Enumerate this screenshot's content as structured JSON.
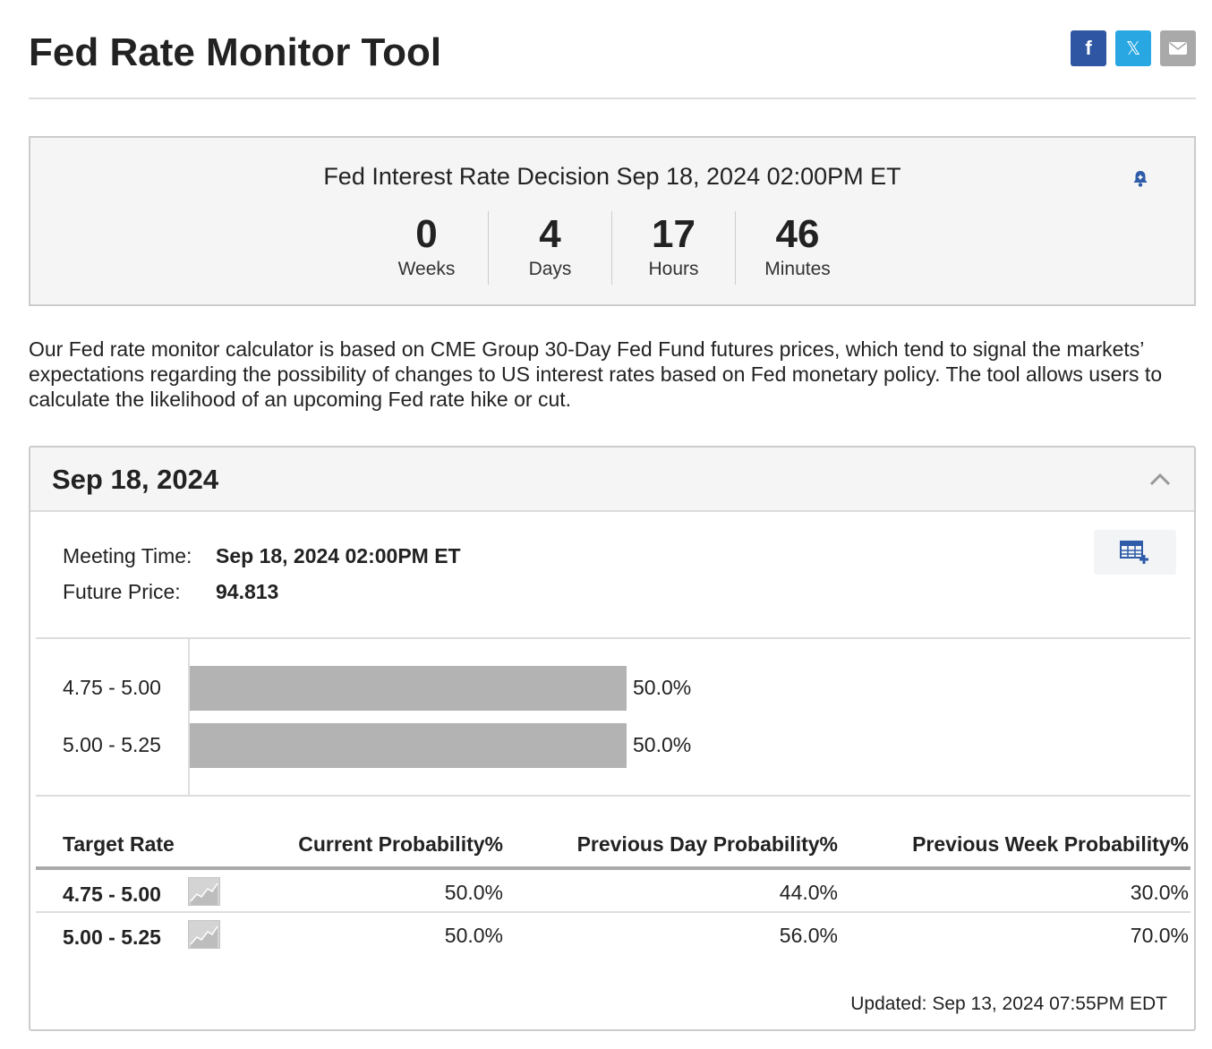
{
  "page": {
    "title": "Fed Rate Monitor Tool"
  },
  "share": {
    "facebook_glyph": "f",
    "twitter_glyph": "𝕏",
    "icons": [
      "facebook-icon",
      "twitter-icon",
      "mail-icon"
    ],
    "colors": {
      "facebook": "#2e56a3",
      "twitter": "#28a7e3",
      "mail": "#a9a9a9"
    }
  },
  "countdown": {
    "title": "Fed Interest Rate Decision Sep 18, 2024 02:00PM ET",
    "units": [
      {
        "value": "0",
        "label": "Weeks"
      },
      {
        "value": "4",
        "label": "Days"
      },
      {
        "value": "17",
        "label": "Hours"
      },
      {
        "value": "46",
        "label": "Minutes"
      }
    ],
    "bell_color": "#2e5ca8"
  },
  "description": "Our Fed rate monitor calculator is based on CME Group 30-Day Fed Fund futures prices, which tend to signal the markets’ expectations regarding the possibility of changes to US interest rates based on Fed monetary policy. The tool allows users to calculate the likelihood of an upcoming Fed rate hike or cut.",
  "meeting": {
    "header": "Sep 18, 2024",
    "meeting_time_label": "Meeting Time:",
    "meeting_time_value": "Sep 18, 2024 02:00PM ET",
    "future_price_label": "Future Price:",
    "future_price_value": "94.813",
    "updated": "Updated: Sep 13, 2024 07:55PM EDT"
  },
  "chart_data": {
    "type": "bar",
    "orientation": "horizontal",
    "categories": [
      "4.75 - 5.00",
      "5.00 - 5.25"
    ],
    "values": [
      50.0,
      50.0
    ],
    "value_labels": [
      "50.0%",
      "50.0%"
    ],
    "xlim": [
      0,
      100
    ],
    "bar_color": "#b3b3b3"
  },
  "table": {
    "headers": [
      "Target Rate",
      "Current Probability%",
      "Previous Day Probability%",
      "Previous Week Probability%"
    ],
    "rows": [
      {
        "rate": "4.75 - 5.00",
        "current": "50.0%",
        "prev_day": "44.0%",
        "prev_week": "30.0%"
      },
      {
        "rate": "5.00 - 5.25",
        "current": "50.0%",
        "prev_day": "56.0%",
        "prev_week": "70.0%"
      }
    ]
  }
}
